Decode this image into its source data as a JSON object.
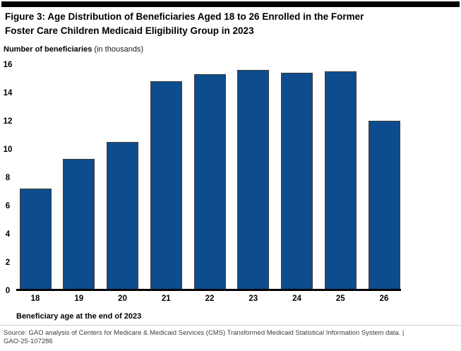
{
  "figure": {
    "title_line1": "Figure 3: Age Distribution of Beneficiaries Aged 18 to 26 Enrolled in the Former",
    "title_line2": "Foster Care Children Medicaid Eligibility Group in 2023"
  },
  "chart_data": {
    "type": "bar",
    "title": "Figure 3: Age Distribution of Beneficiaries Aged 18 to 26 Enrolled in the Former Foster Care Children Medicaid Eligibility Group in 2023",
    "ylabel": "Number of beneficiaries",
    "ylabel_unit": "(in thousands)",
    "xlabel": "Beneficiary age at the end of 2023",
    "categories": [
      "18",
      "19",
      "20",
      "21",
      "22",
      "23",
      "24",
      "25",
      "26"
    ],
    "values": [
      7.1,
      9.2,
      10.4,
      14.7,
      15.2,
      15.5,
      15.3,
      15.4,
      11.9
    ],
    "ylim": [
      0,
      16
    ],
    "y_ticks": [
      0,
      2,
      4,
      6,
      8,
      10,
      12,
      14,
      16
    ],
    "grid": false,
    "legend": "none",
    "bar_color": "#0e4d8d"
  },
  "footer": {
    "source_line1": "Source: GAO analysis of Centers for Medicare & Medicaid Services (CMS) Transformed Medicaid Statistical Information System data.  |",
    "source_line2": "GAO-25-107286"
  },
  "colors": {
    "bar_fill": "#0e4d8d",
    "bar_border": "#3c3c3c",
    "axis_line": "#000000",
    "top_rule": "#000000",
    "divider": "#cfcfcf",
    "source_text": "#3d3d3d"
  }
}
